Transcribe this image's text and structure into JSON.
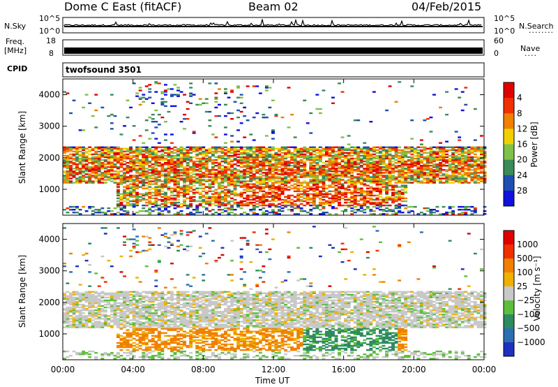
{
  "header": {
    "station": "Dome C East (fitACF)",
    "beam": "Beam 02",
    "date": "04/Feb/2015"
  },
  "top_panels": {
    "nsky_label": "N.Sky",
    "nsky_ticks": [
      "10^5",
      "10^0"
    ],
    "nsearch_label": "N.Search",
    "nsearch_ticks": [
      "10^5",
      "10^0"
    ],
    "freq_label": "Freq.",
    "freq_unit": "[MHz]",
    "freq_ticks": [
      "18",
      "8"
    ],
    "nave_label": "Nave",
    "nave_ticks": [
      "60",
      "0"
    ],
    "cpid_label": "CPID",
    "cpid_text": "twofsound 3501"
  },
  "chart_data": [
    {
      "type": "heatmap",
      "name": "power-panel",
      "ylabel": "Slant Range [km]",
      "xlabel": "Time UT",
      "x_ticks": [
        "00:00",
        "04:00",
        "08:00",
        "12:00",
        "16:00",
        "20:00",
        "00:00"
      ],
      "xlim_hours": [
        0,
        24
      ],
      "y_ticks": [
        1000,
        2000,
        3000,
        4000
      ],
      "ylim": [
        180,
        4500
      ],
      "colorbar": {
        "label": "Power [dB]",
        "ticks": [
          "4",
          "8",
          "12",
          "16",
          "20",
          "24",
          "28"
        ],
        "colors": [
          "#1010e0",
          "#1f4fb0",
          "#3a8a5a",
          "#7ec24a",
          "#f0d000",
          "#f08000",
          "#f03000",
          "#e00000"
        ]
      }
    },
    {
      "type": "heatmap",
      "name": "velocity-panel",
      "ylabel": "Slant Range [km]",
      "xlabel": "Time UT",
      "x_ticks": [
        "00:00",
        "04:00",
        "08:00",
        "12:00",
        "16:00",
        "20:00",
        "00:00"
      ],
      "xlim_hours": [
        0,
        24
      ],
      "y_ticks": [
        1000,
        2000,
        3000,
        4000
      ],
      "ylim": [
        180,
        4500
      ],
      "colorbar": {
        "label": "Velocity [m s⁻¹]",
        "ticks": [
          "1000",
          "500",
          "100",
          "25",
          "−25",
          "−100",
          "−500",
          "−1000"
        ],
        "colors": [
          "#2030c0",
          "#2a6fb0",
          "#2e8a60",
          "#5cbf3c",
          "#c8c8c8",
          "#f0b000",
          "#f08000",
          "#f03000",
          "#e00000"
        ]
      }
    }
  ]
}
